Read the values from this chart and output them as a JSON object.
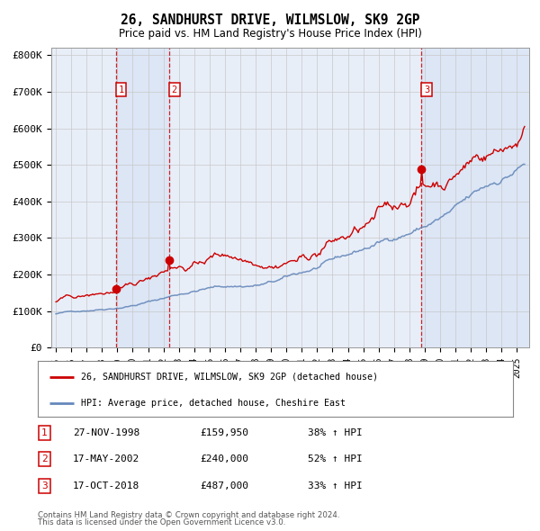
{
  "title": "26, SANDHURST DRIVE, WILMSLOW, SK9 2GP",
  "subtitle": "Price paid vs. HM Land Registry's House Price Index (HPI)",
  "xlim_start": 1994.7,
  "xlim_end": 2025.8,
  "ylim": [
    0,
    820000
  ],
  "yticks": [
    0,
    100000,
    200000,
    300000,
    400000,
    500000,
    600000,
    700000,
    800000
  ],
  "ytick_labels": [
    "£0",
    "£100K",
    "£200K",
    "£300K",
    "£400K",
    "£500K",
    "£600K",
    "£700K",
    "£800K"
  ],
  "bg_color": "#ffffff",
  "plot_bg_color": "#e8eef8",
  "grid_color": "#c8c8c8",
  "purchase_color": "#cc0000",
  "hpi_color": "#6688bb",
  "vline_color": "#cc0000",
  "vspan_color": "#dce6f5",
  "purchase1_x": 1998.9,
  "purchase1_y": 159950,
  "purchase1_label": "1",
  "purchase1_date": "27-NOV-1998",
  "purchase1_price": "£159,950",
  "purchase1_hpi": "38% ↑ HPI",
  "purchase2_x": 2002.38,
  "purchase2_y": 240000,
  "purchase2_label": "2",
  "purchase2_date": "17-MAY-2002",
  "purchase2_price": "£240,000",
  "purchase2_hpi": "52% ↑ HPI",
  "purchase3_x": 2018.79,
  "purchase3_y": 487000,
  "purchase3_label": "3",
  "purchase3_date": "17-OCT-2018",
  "purchase3_price": "£487,000",
  "purchase3_hpi": "33% ↑ HPI",
  "legend_line1": "26, SANDHURST DRIVE, WILMSLOW, SK9 2GP (detached house)",
  "legend_line2": "HPI: Average price, detached house, Cheshire East",
  "footer1": "Contains HM Land Registry data © Crown copyright and database right 2024.",
  "footer2": "This data is licensed under the Open Government Licence v3.0."
}
